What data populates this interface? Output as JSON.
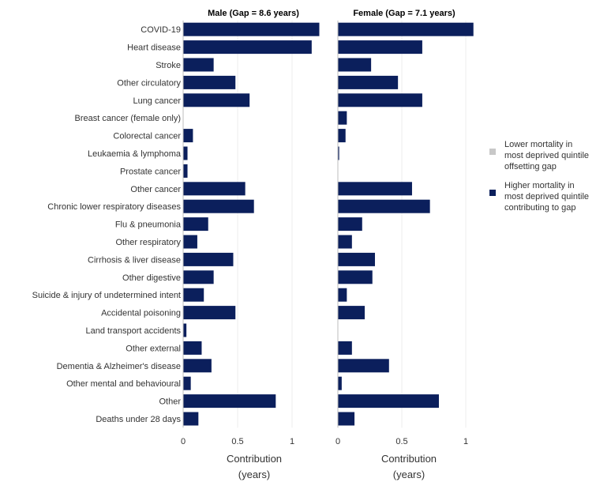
{
  "chart_data": {
    "type": "bar",
    "orientation": "horizontal",
    "categories": [
      "COVID-19",
      "Heart disease",
      "Stroke",
      "Other circulatory",
      "Lung cancer",
      "Breast cancer (female only)",
      "Colorectal cancer",
      "Leukaemia & lymphoma",
      "Prostate cancer",
      "Other cancer",
      "Chronic lower respiratory diseases",
      "Flu & pneumonia",
      "Other respiratory",
      "Cirrhosis & liver disease",
      "Other digestive",
      "Suicide & injury of undetermined intent",
      "Accidental poisoning",
      "Land transport accidents",
      "Other external",
      "Dementia & Alzheimer's disease",
      "Other mental and behavioural",
      "Other",
      "Deaths under 28 days"
    ],
    "panels": [
      {
        "title": "Male (Gap = 8.6 years)",
        "values": [
          1.25,
          1.18,
          0.28,
          0.48,
          0.61,
          0.0,
          0.09,
          0.04,
          0.04,
          0.57,
          0.65,
          0.23,
          0.13,
          0.46,
          0.28,
          0.19,
          0.48,
          0.03,
          0.17,
          0.26,
          0.07,
          0.85,
          0.14
        ]
      },
      {
        "title": "Female (Gap = 7.1 years)",
        "values": [
          1.06,
          0.66,
          0.26,
          0.47,
          0.66,
          0.07,
          0.06,
          0.01,
          0.0,
          0.58,
          0.72,
          0.19,
          0.11,
          0.29,
          0.27,
          0.07,
          0.21,
          0.0,
          0.11,
          0.4,
          0.03,
          0.79,
          0.13
        ]
      }
    ],
    "xlabel": "Contribution\n(years)",
    "xlabel_line1": "Contribution",
    "xlabel_line2": "(years)",
    "xticks": [
      "0",
      "0.5",
      "1"
    ],
    "legend": {
      "placement": "right",
      "entries": [
        {
          "label_lines": [
            "Lower mortality in",
            "most deprived quintile",
            "offsetting gap"
          ],
          "color": "#c8c8c8"
        },
        {
          "label_lines": [
            "Higher mortality in",
            "most deprived quintile",
            "contributing to gap"
          ],
          "color": "#0b1f5c"
        }
      ]
    },
    "bar_color": "#0b1f5c"
  }
}
